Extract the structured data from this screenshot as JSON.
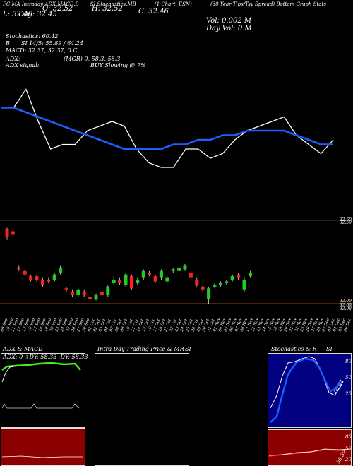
{
  "header": {
    "links": [
      "FC MA Intraday",
      "ADX,MACD,B",
      "SI,Stochastics,MB",
      "(1 Chart, ESN)",
      "(30 Year Tips/Tsy Spread) Bottom Graph Stats"
    ],
    "o": "O: 32.52",
    "h": "H: 32.52",
    "c": "C: 32.46",
    "l": "L: 32.46",
    "vol": "Vol: 0.002  M",
    "day": "Day: 32.45",
    "dayvol": "Day Vol: 0   M",
    "stoch": "Stochastics: 60.42",
    "si": "SI 14/5: 55.89 / 64.24",
    "si_pre": "B",
    "macd": "MACD: 32.37,  32.37,  0  C",
    "adx": "ADX:",
    "mgr": "(MGR) 0,  58.3,  58.3",
    "adx_signal": "ADX  signal:",
    "buy": "BUY Slowing @ 7%"
  },
  "chart_data": [
    {
      "type": "line",
      "name": "price-lines",
      "series": [
        {
          "color": "#ffffff",
          "values": [
            32.4,
            32.4,
            32.44,
            32.37,
            32.31,
            32.32,
            32.32,
            32.35,
            32.36,
            32.37,
            32.36,
            32.31,
            32.28,
            32.27,
            32.27,
            32.31,
            32.31,
            32.29,
            32.3,
            32.33,
            32.35,
            32.36,
            32.37,
            32.38,
            32.34,
            32.32,
            32.3,
            32.33
          ]
        },
        {
          "color": "#1e5eff",
          "values": [
            32.4,
            32.4,
            32.39,
            32.38,
            32.37,
            32.36,
            32.35,
            32.34,
            32.33,
            32.32,
            32.31,
            32.31,
            32.31,
            32.31,
            32.32,
            32.32,
            32.33,
            32.33,
            32.34,
            32.34,
            32.35,
            32.35,
            32.35,
            32.35,
            32.34,
            32.33,
            32.32,
            32.32
          ]
        }
      ]
    },
    {
      "type": "candlestick",
      "name": "main-candles",
      "candles": [
        {
          "o": 32.6,
          "c": 32.56,
          "h": 32.61,
          "l": 32.54
        },
        {
          "o": 32.59,
          "c": 32.57,
          "h": 32.6,
          "l": 32.56
        },
        {
          "o": 32.38,
          "c": 32.37,
          "h": 32.39,
          "l": 32.36
        },
        {
          "o": 32.36,
          "c": 32.34,
          "h": 32.37,
          "l": 32.33
        },
        {
          "o": 32.33,
          "c": 32.31,
          "h": 32.34,
          "l": 32.3
        },
        {
          "o": 32.33,
          "c": 32.31,
          "h": 32.34,
          "l": 32.3
        },
        {
          "o": 32.31,
          "c": 32.28,
          "h": 32.32,
          "l": 32.27
        },
        {
          "o": 32.31,
          "c": 32.3,
          "h": 32.32,
          "l": 32.29
        },
        {
          "o": 32.31,
          "c": 32.34,
          "h": 32.35,
          "l": 32.3
        },
        {
          "o": 32.35,
          "c": 32.38,
          "h": 32.39,
          "l": 32.34
        },
        {
          "o": 32.26,
          "c": 32.25,
          "h": 32.27,
          "l": 32.24
        },
        {
          "o": 32.24,
          "c": 32.22,
          "h": 32.25,
          "l": 32.21
        },
        {
          "o": 32.22,
          "c": 32.25,
          "h": 32.26,
          "l": 32.21
        },
        {
          "o": 32.24,
          "c": 32.22,
          "h": 32.25,
          "l": 32.21
        },
        {
          "o": 32.21,
          "c": 32.2,
          "h": 32.22,
          "l": 32.19
        },
        {
          "o": 32.2,
          "c": 32.22,
          "h": 32.23,
          "l": 32.19
        },
        {
          "o": 32.24,
          "c": 32.22,
          "h": 32.25,
          "l": 32.21
        },
        {
          "o": 32.22,
          "c": 32.27,
          "h": 32.28,
          "l": 32.21
        },
        {
          "o": 32.29,
          "c": 32.31,
          "h": 32.33,
          "l": 32.28
        },
        {
          "o": 32.31,
          "c": 32.29,
          "h": 32.32,
          "l": 32.28
        },
        {
          "o": 32.28,
          "c": 32.34,
          "h": 32.35,
          "l": 32.27
        },
        {
          "o": 32.33,
          "c": 32.26,
          "h": 32.34,
          "l": 32.25
        },
        {
          "o": 32.29,
          "c": 32.31,
          "h": 32.32,
          "l": 32.28
        },
        {
          "o": 32.32,
          "c": 32.36,
          "h": 32.37,
          "l": 32.31
        },
        {
          "o": 32.35,
          "c": 32.34,
          "h": 32.36,
          "l": 32.33
        },
        {
          "o": 32.33,
          "c": 32.3,
          "h": 32.34,
          "l": 32.29
        },
        {
          "o": 32.32,
          "c": 32.36,
          "h": 32.37,
          "l": 32.31
        },
        {
          "o": 32.3,
          "c": 32.32,
          "h": 32.33,
          "l": 32.29
        },
        {
          "o": 32.36,
          "c": 32.37,
          "h": 32.38,
          "l": 32.35
        },
        {
          "o": 32.36,
          "c": 32.38,
          "h": 32.39,
          "l": 32.35
        },
        {
          "o": 32.37,
          "c": 32.39,
          "h": 32.4,
          "l": 32.36
        },
        {
          "o": 32.35,
          "c": 32.32,
          "h": 32.36,
          "l": 32.31
        },
        {
          "o": 32.31,
          "c": 32.28,
          "h": 32.32,
          "l": 32.27
        },
        {
          "o": 32.27,
          "c": 32.25,
          "h": 32.28,
          "l": 32.24
        },
        {
          "o": 32.2,
          "c": 32.26,
          "h": 32.27,
          "l": 32.17
        },
        {
          "o": 32.27,
          "c": 32.28,
          "h": 32.29,
          "l": 32.26
        },
        {
          "o": 32.28,
          "c": 32.29,
          "h": 32.3,
          "l": 32.27
        },
        {
          "o": 32.29,
          "c": 32.3,
          "h": 32.31,
          "l": 32.28
        },
        {
          "o": 32.31,
          "c": 32.33,
          "h": 32.34,
          "l": 32.3
        },
        {
          "o": 32.34,
          "c": 32.32,
          "h": 32.35,
          "l": 32.31
        },
        {
          "o": 32.25,
          "c": 32.31,
          "h": 32.32,
          "l": 32.24
        },
        {
          "o": 32.33,
          "c": 32.35,
          "h": 32.36,
          "l": 32.32
        }
      ],
      "ylabels": [
        "32.60",
        "32.59",
        "32.09",
        "32.09",
        "32.08"
      ]
    }
  ],
  "xaxis": {
    "labels": [
      "09 Sep",
      "10 Sep",
      "11 Sep",
      "12 Sep",
      "13 Sep",
      "16 Sep",
      "17 Sep",
      "18 Sep",
      "19 Sep",
      "20 Sep",
      "23 Sep",
      "24 Sep",
      "25 Sep",
      "26 Sep",
      "27 Sep",
      "30 Sep",
      "01 Oct",
      "02 Oct",
      "03 Oct",
      "04 Oct",
      "07 Oct",
      "08 Oct",
      "09 Oct",
      "10 Oct",
      "11 Oct",
      "14 Oct",
      "15 Oct",
      "16 Oct",
      "17 Oct",
      "18 Oct",
      "21 Oct",
      "22 Oct",
      "23 Oct",
      "24 Oct",
      "25 Oct",
      "28 Oct",
      "29 Oct",
      "30 Oct",
      "31 Oct",
      "01 Nov",
      "04 Nov",
      "05 Nov",
      "06 Nov",
      "07 Nov",
      "08 Nov",
      "11 Nov",
      "12 Nov",
      "13 Nov",
      "14 Nov",
      "15 Nov",
      "18 Nov",
      "19 Nov",
      "20 Nov",
      "21 Nov",
      "22 Nov",
      "25 Nov",
      "26 Nov",
      "27 Nov",
      "29 Nov",
      "02 Dec",
      "03 Dec",
      "04 Dec",
      "05 Dec",
      "06 Dec"
    ]
  },
  "panels": {
    "adx_title": "ADX  & MACD",
    "adx_box": "ADX: 0   +DY: 58.33  -DY: 58.33",
    "intra_title": "Intra  Day Trading Price  & MR",
    "intra_si": "SI",
    "stoch_title": "Stochastics & R",
    "stoch_si": "SI",
    "stoch_levels": [
      "80",
      "50",
      "20"
    ],
    "rsi_levels": [
      "80",
      "50",
      "20"
    ],
    "stoch_right": "60.42",
    "rsi_right": "55.89"
  },
  "colors": {
    "green": "#22cc22",
    "red": "#ff2020",
    "blue": "#1e5eff",
    "stoch_bg": "#000080",
    "rsi_bg": "#8b0000",
    "macd_bg": "#8b0000"
  }
}
